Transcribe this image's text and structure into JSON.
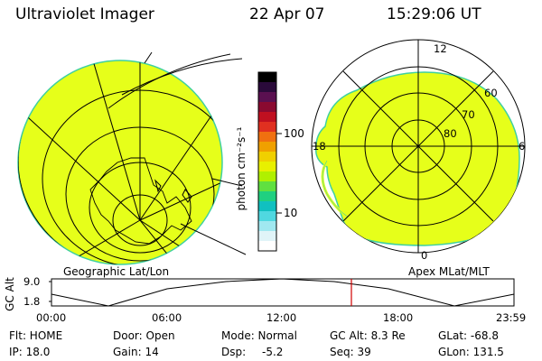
{
  "header": {
    "title": "Ultraviolet Imager",
    "date": "22 Apr 07",
    "time": "15:29:06 UT"
  },
  "colorbar": {
    "unit_label": "photon cm⁻²s⁻¹",
    "ticks": [
      "100",
      "10"
    ],
    "colors_top_to_bottom": [
      "#000000",
      "#2a0a3a",
      "#5a1050",
      "#8a0a30",
      "#c01020",
      "#e03020",
      "#f07010",
      "#f0a000",
      "#f0d000",
      "#e8f000",
      "#b0f000",
      "#60e040",
      "#20d080",
      "#10c0c0",
      "#50d8e0",
      "#a0e8f0",
      "#e0f4f8",
      "#ffffff"
    ]
  },
  "left_map": {
    "caption": "Geographic Lat/Lon",
    "fill_color": "#e6ff1a"
  },
  "right_map": {
    "caption": "Apex MLat/MLT",
    "fill_color": "#e6ff1a",
    "mlt_labels": {
      "top": "12",
      "left": "18",
      "right": "6",
      "bottom": "0"
    },
    "lat_labels": [
      "60",
      "70",
      "80"
    ]
  },
  "altitude_plot": {
    "ylabel": "GC Alt",
    "y_ticks": [
      "9.0",
      "1.8"
    ],
    "x_ticks": [
      "00:00",
      "06:00",
      "12:00",
      "18:00",
      "23:59"
    ],
    "marker_color": "#d00000"
  },
  "info": {
    "flt": "Flt: HOME",
    "ip": "IP: 18.0",
    "door": "Door: Open",
    "gain": "Gain: 14",
    "mode": "Mode: Normal",
    "dsp_label": "Dsp:",
    "dsp_value": "-5.2",
    "gc_alt": "GC Alt: 8.3 Re",
    "seq": "Seq: 39",
    "glat": "GLat: -68.8",
    "glon": "GLon: 131.5"
  }
}
